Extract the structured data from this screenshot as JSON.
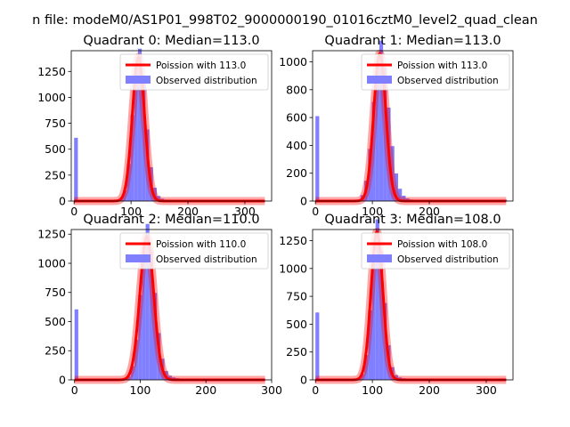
{
  "figure": {
    "suptitle": "n file: modeM0/AS1P01_998T02_9000000190_01016cztM0_level2_quad_clean"
  },
  "colors": {
    "hist_fill": "#7f7fff",
    "poisson_line": "#ff0000",
    "axis": "#000000",
    "background": "#ffffff"
  },
  "chart_data": [
    {
      "type": "bar",
      "title": "Quadrant 0: Median=113.0",
      "median": 113.0,
      "xlim": [
        -5,
        347
      ],
      "ylim": [
        0,
        1450
      ],
      "xticks": [
        0,
        100,
        200,
        300
      ],
      "xtick_labels": [
        "0",
        "100",
        "200",
        "300"
      ],
      "yticks": [
        0,
        250,
        500,
        750,
        1000,
        1250
      ],
      "ytick_labels": [
        "0",
        "250",
        "500",
        "750",
        "1000",
        "1250"
      ],
      "bin_width": 6.6,
      "zero_bin_count": 610,
      "peak_count": 1390,
      "tail_level": 5,
      "hist_max_x": 335,
      "sigma_left": 10.5,
      "sigma_right": 12.5,
      "legend": [
        "Poission with 113.0",
        "Observed distribution"
      ],
      "legend_loc": "upper right"
    },
    {
      "type": "bar",
      "title": "Quadrant 1: Median=113.0",
      "median": 113.0,
      "xlim": [
        -5,
        347
      ],
      "ylim": [
        0,
        1080
      ],
      "xticks": [
        0,
        100,
        200
      ],
      "xtick_labels": [
        "0",
        "100",
        "200"
      ],
      "yticks": [
        0,
        200,
        400,
        600,
        800,
        1000
      ],
      "ytick_labels": [
        "0",
        "200",
        "400",
        "600",
        "800",
        "1000"
      ],
      "bin_width": 6.6,
      "zero_bin_count": 610,
      "peak_count": 1060,
      "tail_level": 10,
      "hist_max_x": 335,
      "sigma_left": 12,
      "sigma_right": 15,
      "legend": [
        "Poission with 113.0",
        "Observed distribution"
      ],
      "legend_loc": "upper right"
    },
    {
      "type": "bar",
      "title": "Quadrant 2: Median=110.0",
      "median": 110.0,
      "xlim": [
        -5,
        300
      ],
      "ylim": [
        0,
        1290
      ],
      "xticks": [
        0,
        100,
        200,
        300
      ],
      "xtick_labels": [
        "0",
        "100",
        "200",
        "300"
      ],
      "yticks": [
        0,
        250,
        500,
        750,
        1000,
        1250
      ],
      "ytick_labels": [
        "0",
        "250",
        "500",
        "750",
        "1000",
        "1250"
      ],
      "bin_width": 5.7,
      "zero_bin_count": 605,
      "peak_count": 1230,
      "tail_level": 5,
      "hist_max_x": 290,
      "sigma_left": 10,
      "sigma_right": 11.5,
      "legend": [
        "Poission with 110.0",
        "Observed distribution"
      ],
      "legend_loc": "upper right"
    },
    {
      "type": "bar",
      "title": "Quadrant 3: Median=108.0",
      "median": 108.0,
      "xlim": [
        -5,
        347
      ],
      "ylim": [
        0,
        1350
      ],
      "xticks": [
        0,
        100,
        200,
        300
      ],
      "xtick_labels": [
        "0",
        "100",
        "200",
        "300"
      ],
      "yticks": [
        0,
        250,
        500,
        750,
        1000,
        1250
      ],
      "ytick_labels": [
        "0",
        "250",
        "500",
        "750",
        "1000",
        "1250"
      ],
      "bin_width": 6.6,
      "zero_bin_count": 605,
      "peak_count": 1330,
      "tail_level": 5,
      "hist_max_x": 335,
      "sigma_left": 10,
      "sigma_right": 11.5,
      "legend": [
        "Poission with 108.0",
        "Observed distribution"
      ],
      "legend_loc": "upper right"
    }
  ]
}
